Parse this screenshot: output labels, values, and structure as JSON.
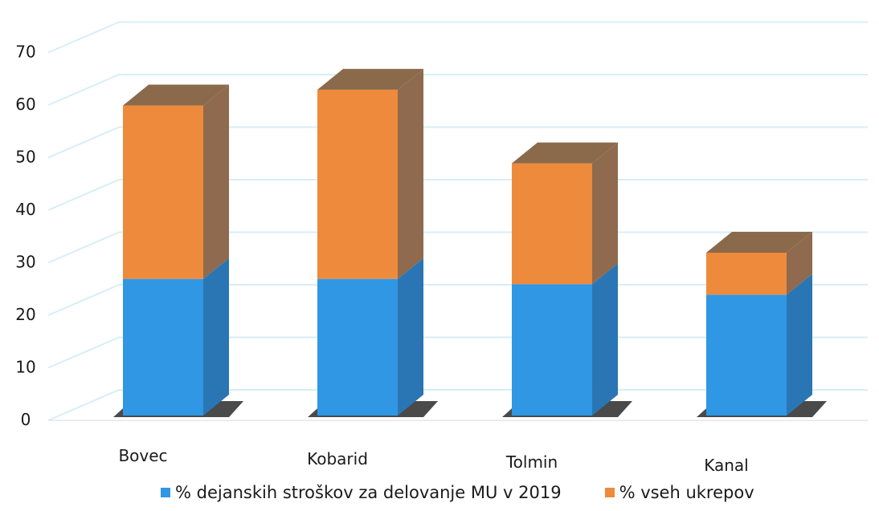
{
  "chart_data": {
    "type": "bar",
    "stacked": true,
    "three_d": true,
    "categories": [
      "Bovec",
      "Kobarid",
      "Tolmin",
      "Kanal"
    ],
    "series": [
      {
        "name": "% dejanskih stroškov za delovanje MU v 2019",
        "values": [
          26,
          26,
          25,
          23
        ],
        "color": "#2f97e3"
      },
      {
        "name": "% vseh ukrepov",
        "values": [
          33,
          36,
          23,
          8
        ],
        "color": "#ee8a3c"
      }
    ],
    "yticks": [
      0,
      10,
      20,
      30,
      40,
      50,
      60,
      70
    ],
    "ylim": [
      0,
      75
    ],
    "grid": true,
    "legend_position": "bottom",
    "colors": {
      "side_blue": "#2a76b4",
      "side_orange_top": "#8f6a4e",
      "top_face": "#8a6a4a",
      "gridline": "#d7eef6",
      "shadow": "#2a2a2a"
    }
  }
}
